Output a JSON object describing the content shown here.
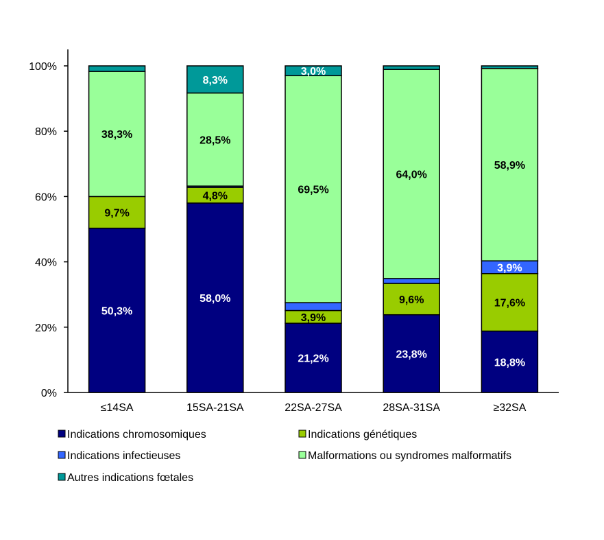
{
  "chart_data": {
    "type": "bar",
    "stacked": true,
    "percent": true,
    "categories": [
      "≤14SA",
      "15SA-21SA",
      "22SA-27SA",
      "28SA-31SA",
      "≥32SA"
    ],
    "yticks": [
      "0%",
      "20%",
      "40%",
      "60%",
      "80%",
      "100%"
    ],
    "ylim": [
      0,
      100
    ],
    "grid": false,
    "legend_position": "bottom",
    "series": [
      {
        "name": "Indications chromosomiques",
        "color": "#000080",
        "values": [
          50.3,
          58.0,
          21.2,
          23.8,
          18.8
        ],
        "labels": [
          "50,3%",
          "58,0%",
          "21,2%",
          "23,8%",
          "18,8%"
        ],
        "label_color": "#ffffff"
      },
      {
        "name": "Indications génétiques",
        "color": "#99cc00",
        "values": [
          9.7,
          4.8,
          3.9,
          9.6,
          17.6
        ],
        "labels": [
          "9,7%",
          "4,8%",
          "3,9%",
          "9,6%",
          "17,6%"
        ],
        "label_color": "#000000"
      },
      {
        "name": "Indications infectieuses",
        "color": "#3366ff",
        "values": [
          0,
          0.4,
          2.4,
          1.5,
          3.9
        ],
        "labels": [
          "",
          "",
          "",
          "",
          "3,9%"
        ],
        "label_color": "#ffffff"
      },
      {
        "name": "Malformations ou syndromes malformatifs",
        "color": "#99ff99",
        "values": [
          38.3,
          28.5,
          69.5,
          64.0,
          58.9
        ],
        "labels": [
          "38,3%",
          "28,5%",
          "69,5%",
          "64,0%",
          "58,9%"
        ],
        "label_color": "#000000"
      },
      {
        "name": "Autres indications fœtales",
        "color": "#009999",
        "values": [
          1.7,
          8.3,
          3.0,
          1.1,
          0.8
        ],
        "labels": [
          "",
          "8,3%",
          "3,0%",
          "",
          ""
        ],
        "label_color": "#ffffff"
      }
    ]
  }
}
